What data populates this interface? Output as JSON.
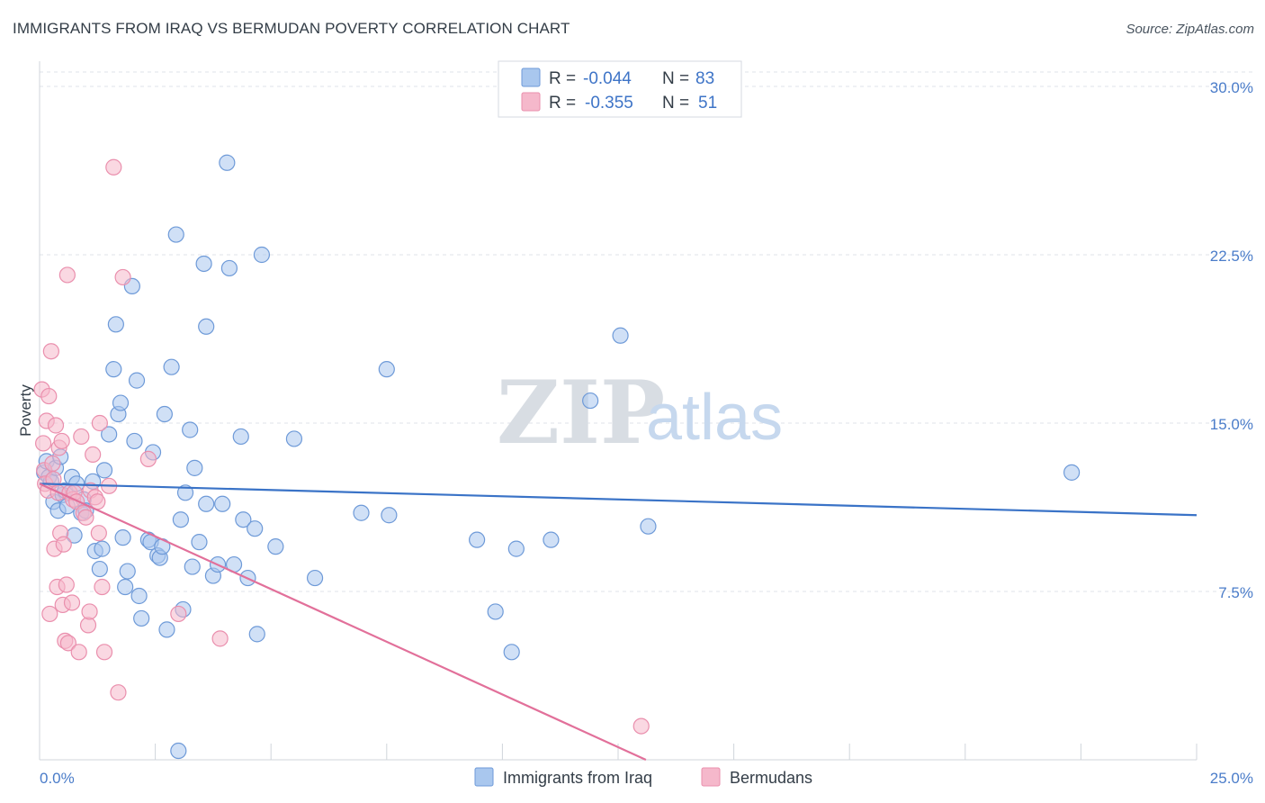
{
  "title": "IMMIGRANTS FROM IRAQ VS BERMUDAN POVERTY CORRELATION CHART",
  "source": "Source: ZipAtlas.com",
  "watermark": {
    "zip": "ZIP",
    "atlas": "atlas"
  },
  "colors": {
    "blue_fill": "#a9c7ee",
    "blue_stroke": "#6e9ad8",
    "blue_line": "#3a73c7",
    "pink_fill": "#f5b8cb",
    "pink_stroke": "#ea8fad",
    "pink_line": "#e2709a",
    "grid": "#dfe3e8",
    "axis_text": "#4a7cc9"
  },
  "legend": {
    "rows": [
      {
        "r_label": "R =",
        "r_value": "-0.044",
        "n_label": "N =",
        "n_value": "83"
      },
      {
        "r_label": "R =",
        "r_value": "-0.355",
        "n_label": "N =",
        "n_value": "51"
      }
    ]
  },
  "chart_data": {
    "type": "scatter",
    "title": "IMMIGRANTS FROM IRAQ VS BERMUDAN POVERTY CORRELATION CHART",
    "xlabel": "",
    "ylabel": "Poverty",
    "xlim": [
      0,
      25
    ],
    "ylim": [
      0,
      30
    ],
    "x_tick_labels": [
      "0.0%",
      "25.0%"
    ],
    "y_ticks": [
      7.5,
      15.0,
      22.5,
      30.0
    ],
    "y_tick_labels": [
      "7.5%",
      "15.0%",
      "22.5%",
      "30.0%"
    ],
    "grid": true,
    "legend_position": "top-center and bottom",
    "series": [
      {
        "name": "Immigrants from Iraq",
        "color": "#a9c7ee",
        "trend": {
          "x": [
            0,
            25
          ],
          "y": [
            12.3,
            10.9
          ]
        },
        "points": [
          [
            0.1,
            12.8
          ],
          [
            0.15,
            13.3
          ],
          [
            0.2,
            12.6
          ],
          [
            0.25,
            12.4
          ],
          [
            0.3,
            11.5
          ],
          [
            0.35,
            13.0
          ],
          [
            0.4,
            11.1
          ],
          [
            0.45,
            13.5
          ],
          [
            0.5,
            11.8
          ],
          [
            0.55,
            12.0
          ],
          [
            0.6,
            11.3
          ],
          [
            0.7,
            12.6
          ],
          [
            0.75,
            10.0
          ],
          [
            0.8,
            12.3
          ],
          [
            0.9,
            11.0
          ],
          [
            0.95,
            11.6
          ],
          [
            1.0,
            11.1
          ],
          [
            1.15,
            12.4
          ],
          [
            1.2,
            9.3
          ],
          [
            1.3,
            8.5
          ],
          [
            1.35,
            9.4
          ],
          [
            1.4,
            12.9
          ],
          [
            1.5,
            14.5
          ],
          [
            1.6,
            17.4
          ],
          [
            1.65,
            19.4
          ],
          [
            1.7,
            15.4
          ],
          [
            1.75,
            15.9
          ],
          [
            1.8,
            9.9
          ],
          [
            1.85,
            7.7
          ],
          [
            1.9,
            8.4
          ],
          [
            2.0,
            21.1
          ],
          [
            2.05,
            14.2
          ],
          [
            2.1,
            16.9
          ],
          [
            2.15,
            7.3
          ],
          [
            2.2,
            6.3
          ],
          [
            2.35,
            9.8
          ],
          [
            2.4,
            9.7
          ],
          [
            2.45,
            13.7
          ],
          [
            2.55,
            9.1
          ],
          [
            2.6,
            9.0
          ],
          [
            2.65,
            9.5
          ],
          [
            2.7,
            15.4
          ],
          [
            2.75,
            5.8
          ],
          [
            2.85,
            17.5
          ],
          [
            2.95,
            23.4
          ],
          [
            3.05,
            10.7
          ],
          [
            3.1,
            6.7
          ],
          [
            3.15,
            11.9
          ],
          [
            3.25,
            14.7
          ],
          [
            3.3,
            8.6
          ],
          [
            3.35,
            13.0
          ],
          [
            3.45,
            9.7
          ],
          [
            3.55,
            22.1
          ],
          [
            3.6,
            11.4
          ],
          [
            3.6,
            19.3
          ],
          [
            3.75,
            8.2
          ],
          [
            3.85,
            8.7
          ],
          [
            3.95,
            11.4
          ],
          [
            4.05,
            26.6
          ],
          [
            4.1,
            21.9
          ],
          [
            4.2,
            8.7
          ],
          [
            4.35,
            14.4
          ],
          [
            4.4,
            10.7
          ],
          [
            4.5,
            8.1
          ],
          [
            4.65,
            10.3
          ],
          [
            4.7,
            5.6
          ],
          [
            4.8,
            22.5
          ],
          [
            5.1,
            9.5
          ],
          [
            5.5,
            14.3
          ],
          [
            5.95,
            8.1
          ],
          [
            6.95,
            11.0
          ],
          [
            7.5,
            17.4
          ],
          [
            7.55,
            10.9
          ],
          [
            9.45,
            9.8
          ],
          [
            9.85,
            6.6
          ],
          [
            10.2,
            4.8
          ],
          [
            10.3,
            9.4
          ],
          [
            11.05,
            9.8
          ],
          [
            11.9,
            16.0
          ],
          [
            12.55,
            18.9
          ],
          [
            13.15,
            10.4
          ],
          [
            22.3,
            12.8
          ],
          [
            3.0,
            0.4
          ]
        ]
      },
      {
        "name": "Bermudans",
        "color": "#f5b8cb",
        "trend": {
          "x": [
            0,
            13.1
          ],
          "y": [
            12.3,
            0.0
          ]
        },
        "points": [
          [
            0.05,
            16.5
          ],
          [
            0.08,
            14.1
          ],
          [
            0.1,
            12.9
          ],
          [
            0.12,
            12.3
          ],
          [
            0.15,
            15.1
          ],
          [
            0.18,
            12.0
          ],
          [
            0.2,
            16.2
          ],
          [
            0.22,
            6.5
          ],
          [
            0.25,
            18.2
          ],
          [
            0.28,
            13.2
          ],
          [
            0.3,
            12.5
          ],
          [
            0.32,
            9.4
          ],
          [
            0.35,
            14.9
          ],
          [
            0.38,
            7.7
          ],
          [
            0.4,
            11.9
          ],
          [
            0.42,
            13.9
          ],
          [
            0.45,
            10.1
          ],
          [
            0.48,
            14.2
          ],
          [
            0.5,
            6.9
          ],
          [
            0.52,
            9.6
          ],
          [
            0.55,
            5.3
          ],
          [
            0.58,
            7.8
          ],
          [
            0.6,
            21.6
          ],
          [
            0.62,
            5.2
          ],
          [
            0.65,
            11.9
          ],
          [
            0.7,
            7.0
          ],
          [
            0.72,
            11.6
          ],
          [
            0.75,
            11.9
          ],
          [
            0.8,
            11.5
          ],
          [
            0.85,
            4.8
          ],
          [
            0.9,
            14.4
          ],
          [
            0.95,
            11.0
          ],
          [
            1.0,
            10.8
          ],
          [
            1.05,
            6.0
          ],
          [
            1.08,
            6.6
          ],
          [
            1.1,
            12.0
          ],
          [
            1.15,
            13.6
          ],
          [
            1.2,
            11.7
          ],
          [
            1.25,
            11.5
          ],
          [
            1.28,
            10.1
          ],
          [
            1.3,
            15.0
          ],
          [
            1.35,
            7.7
          ],
          [
            1.4,
            4.8
          ],
          [
            1.5,
            12.2
          ],
          [
            1.6,
            26.4
          ],
          [
            1.7,
            3.0
          ],
          [
            1.8,
            21.5
          ],
          [
            2.35,
            13.4
          ],
          [
            3.0,
            6.5
          ],
          [
            3.9,
            5.4
          ],
          [
            13.0,
            1.5
          ]
        ]
      }
    ]
  },
  "bottom_legend": {
    "items": [
      {
        "label": "Immigrants from Iraq"
      },
      {
        "label": "Bermudans"
      }
    ]
  }
}
